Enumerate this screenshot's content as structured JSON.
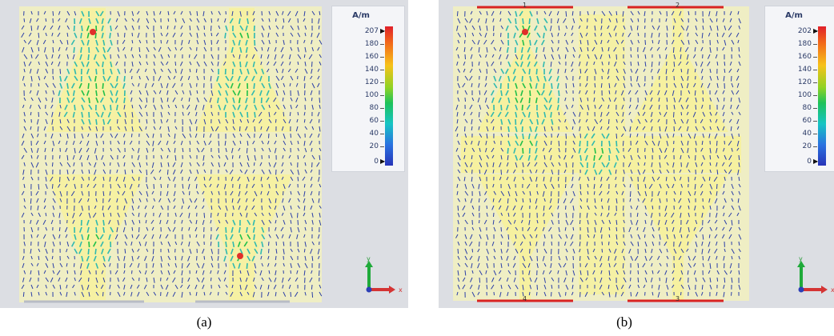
{
  "panels": [
    {
      "id": "a",
      "caption": "(a)",
      "legend": {
        "unit": "A/m",
        "ticks": [
          "207",
          "180",
          "160",
          "140",
          "120",
          "100",
          "80",
          "60",
          "40",
          "20",
          "0"
        ],
        "colors": [
          "#e0202a",
          "#f26a1a",
          "#f7c21a",
          "#8fd224",
          "#1ec25a",
          "#16c4c4",
          "#2a72e0",
          "#2734b8"
        ]
      },
      "axes": {
        "y_label": "y",
        "x_label": "x"
      }
    },
    {
      "id": "b",
      "caption": "(b)",
      "legend": {
        "unit": "A/m",
        "ticks": [
          "202",
          "180",
          "160",
          "140",
          "120",
          "100",
          "80",
          "60",
          "40",
          "20",
          "0"
        ],
        "colors": [
          "#e0202a",
          "#f26a1a",
          "#f7c21a",
          "#8fd224",
          "#1ec25a",
          "#16c4c4",
          "#2a72e0",
          "#2734b8"
        ]
      },
      "axes": {
        "y_label": "y",
        "x_label": "x"
      },
      "ports": [
        "1",
        "2",
        "3",
        "4"
      ]
    }
  ],
  "colors": {
    "substrate": "#efeec4",
    "patch": "#f7f3a8",
    "background": "#dcdee3",
    "port_line": "#d92222",
    "arrow_low": "#2a3ea8",
    "arrow_mid": "#2fb9b0",
    "arrow_high": "#1fbf4a",
    "arrow_peak": "#e0302a"
  }
}
